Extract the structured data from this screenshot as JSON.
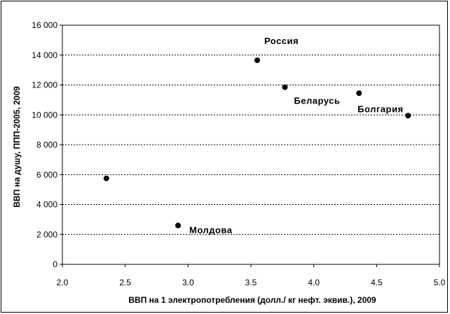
{
  "chart_data": {
    "type": "scatter",
    "title": "",
    "xlabel": "ВВП на 1 электропотребления (долл./ кг нефт. эквив.), 2009",
    "ylabel": "ВВП на душу, ППП-2005, 2009",
    "xlim": [
      2.0,
      5.0
    ],
    "ylim": [
      0,
      16000
    ],
    "x_ticks": [
      2.0,
      2.5,
      3.0,
      3.5,
      4.0,
      4.5,
      5.0
    ],
    "x_tick_labels": [
      "2.0",
      "2.5",
      "3.0",
      "3.5",
      "4.0",
      "4.5",
      "5.0"
    ],
    "y_ticks": [
      0,
      2000,
      4000,
      6000,
      8000,
      10000,
      12000,
      14000,
      16000
    ],
    "y_tick_labels": [
      "0",
      "2 000",
      "4 000",
      "6 000",
      "8 000",
      "10 000",
      "12 000",
      "14 000",
      "16 000"
    ],
    "grid": "horizontal-dotted",
    "legend": "none",
    "marker_color": "#000000",
    "series": [
      {
        "points": [
          {
            "x": 2.35,
            "y": 5750,
            "label": ""
          },
          {
            "x": 2.92,
            "y": 2600,
            "label": "Молдова"
          },
          {
            "x": 3.55,
            "y": 13650,
            "label": "Россия"
          },
          {
            "x": 3.77,
            "y": 11850,
            "label": "Беларусь"
          },
          {
            "x": 4.36,
            "y": 11450,
            "label": ""
          },
          {
            "x": 4.75,
            "y": 9950,
            "label": "Болгария"
          }
        ]
      }
    ]
  }
}
